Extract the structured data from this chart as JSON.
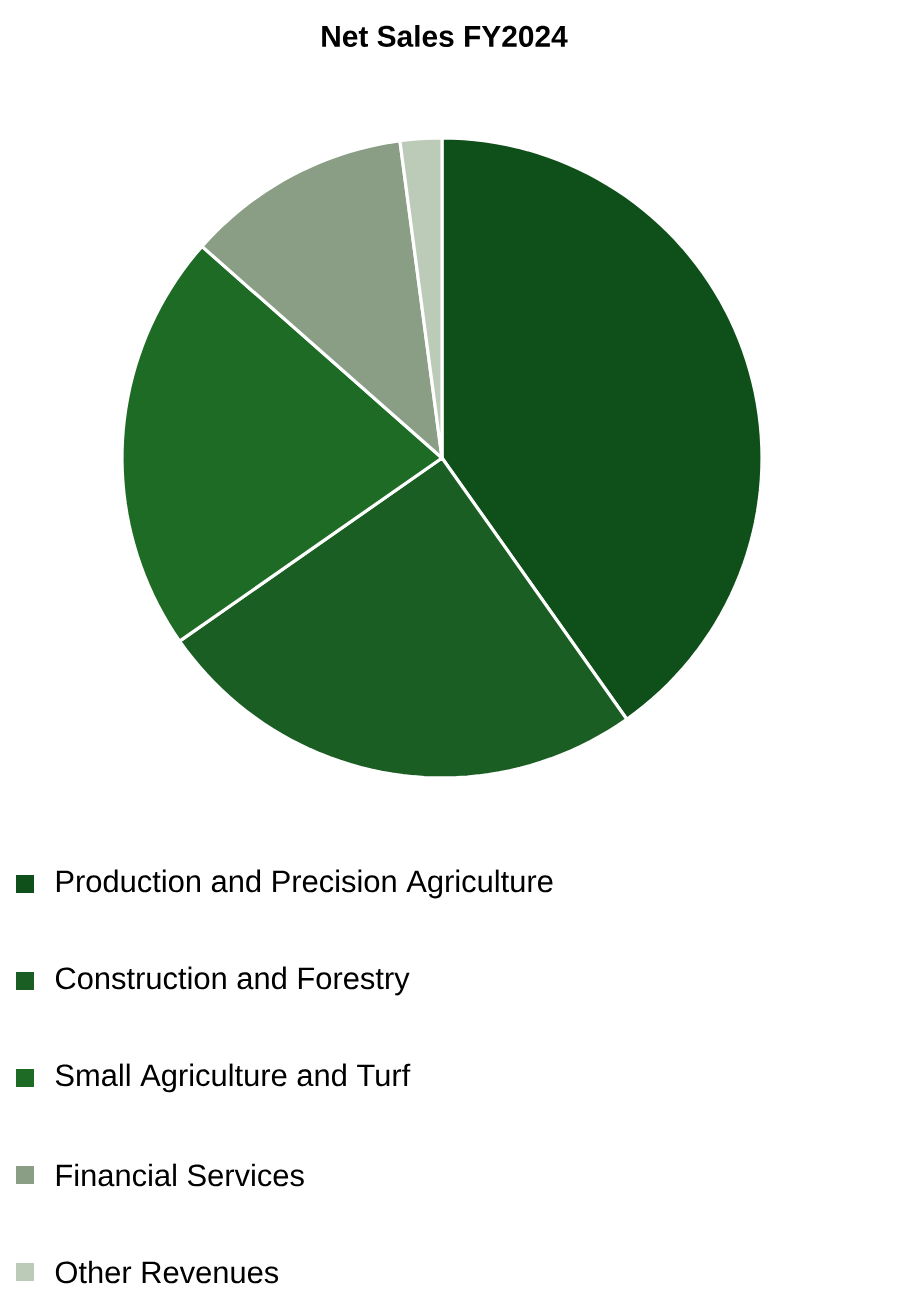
{
  "chart_data": {
    "type": "pie",
    "title": "Net Sales FY2024",
    "categories": [
      "Production and Precision Agriculture",
      "Construction and Forestry",
      "Small Agriculture and Turf",
      "Financial Services",
      "Other Revenues"
    ],
    "values": [
      40.2,
      25.1,
      21.2,
      11.4,
      2.1
    ],
    "colors": [
      "#0f4f1a",
      "#1a5e23",
      "#1e6b25",
      "#8a9e86",
      "#bccab8"
    ],
    "legend": "bottom"
  }
}
